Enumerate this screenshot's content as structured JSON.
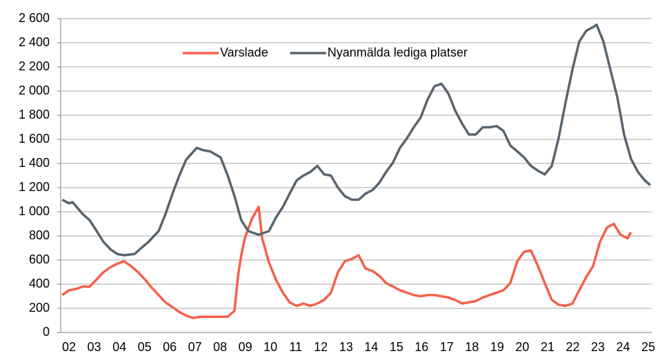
{
  "chart_data": {
    "type": "line",
    "series": [
      {
        "name": "Varslade",
        "color": "#f4604a",
        "x": [
          2001.73,
          2002.0,
          2002.27,
          2002.55,
          2002.82,
          2003.1,
          2003.37,
          2003.64,
          2003.92,
          2004.19,
          2004.46,
          2004.74,
          2005.01,
          2005.29,
          2005.56,
          2005.83,
          2006.11,
          2006.38,
          2006.65,
          2006.93,
          2007.2,
          2007.48,
          2007.75,
          2008.02,
          2008.3,
          2008.57,
          2008.71,
          2008.84,
          2008.98,
          2009.26,
          2009.53,
          2009.67,
          2009.94,
          2010.21,
          2010.49,
          2010.76,
          2011.04,
          2011.31,
          2011.58,
          2011.86,
          2012.13,
          2012.4,
          2012.68,
          2012.95,
          2013.23,
          2013.5,
          2013.77,
          2014.05,
          2014.32,
          2014.59,
          2014.87,
          2015.14,
          2015.42,
          2015.69,
          2015.96,
          2016.24,
          2016.51,
          2016.79,
          2017.06,
          2017.33,
          2017.61,
          2017.88,
          2018.15,
          2018.43,
          2018.7,
          2018.98,
          2019.25,
          2019.52,
          2019.8,
          2020.07,
          2020.34,
          2020.62,
          2020.89,
          2021.17,
          2021.44,
          2021.71,
          2021.99,
          2022.26,
          2022.54,
          2022.81,
          2023.08,
          2023.36,
          2023.63,
          2023.9,
          2024.18,
          2024.31
        ],
        "values": [
          310,
          350,
          360,
          380,
          380,
          440,
          500,
          540,
          570,
          590,
          550,
          500,
          440,
          370,
          310,
          250,
          210,
          170,
          140,
          120,
          130,
          130,
          130,
          130,
          130,
          180,
          470,
          640,
          780,
          940,
          1040,
          780,
          580,
          440,
          330,
          250,
          220,
          240,
          220,
          240,
          270,
          330,
          500,
          590,
          610,
          640,
          530,
          510,
          470,
          410,
          380,
          350,
          330,
          310,
          300,
          310,
          310,
          300,
          290,
          270,
          240,
          250,
          260,
          290,
          310,
          330,
          350,
          410,
          590,
          670,
          680,
          550,
          410,
          270,
          230,
          220,
          240,
          350,
          460,
          550,
          750,
          870,
          900,
          810,
          780,
          830
        ]
      },
      {
        "name": "Nyanmälda lediga platser",
        "color": "#58646e",
        "x": [
          2001.73,
          2002.0,
          2002.14,
          2002.55,
          2002.82,
          2003.1,
          2003.37,
          2003.64,
          2003.92,
          2004.19,
          2004.6,
          2004.87,
          2005.15,
          2005.56,
          2005.83,
          2006.11,
          2006.38,
          2006.65,
          2007.07,
          2007.34,
          2007.61,
          2008.02,
          2008.3,
          2008.57,
          2008.84,
          2009.12,
          2009.53,
          2009.94,
          2010.21,
          2010.49,
          2010.76,
          2011.04,
          2011.31,
          2011.58,
          2011.86,
          2012.13,
          2012.4,
          2012.68,
          2012.95,
          2013.23,
          2013.5,
          2013.77,
          2014.05,
          2014.32,
          2014.59,
          2014.87,
          2015.14,
          2015.42,
          2015.69,
          2015.96,
          2016.24,
          2016.51,
          2016.79,
          2017.06,
          2017.33,
          2017.61,
          2017.88,
          2018.15,
          2018.43,
          2018.7,
          2018.98,
          2019.25,
          2019.52,
          2019.8,
          2020.07,
          2020.34,
          2020.62,
          2020.89,
          2021.17,
          2021.44,
          2021.71,
          2021.99,
          2022.26,
          2022.54,
          2022.81,
          2022.95,
          2023.22,
          2023.49,
          2023.77,
          2024.04,
          2024.31,
          2024.59,
          2024.86,
          2025.08
        ],
        "values": [
          1100,
          1070,
          1080,
          980,
          930,
          840,
          750,
          690,
          650,
          640,
          650,
          700,
          750,
          840,
          980,
          1150,
          1300,
          1430,
          1530,
          1510,
          1500,
          1450,
          1300,
          1130,
          930,
          840,
          810,
          840,
          950,
          1040,
          1150,
          1260,
          1300,
          1330,
          1380,
          1310,
          1300,
          1200,
          1130,
          1100,
          1100,
          1150,
          1180,
          1240,
          1330,
          1410,
          1530,
          1610,
          1700,
          1780,
          1930,
          2040,
          2060,
          1980,
          1840,
          1730,
          1640,
          1640,
          1700,
          1700,
          1710,
          1670,
          1550,
          1500,
          1450,
          1380,
          1340,
          1310,
          1380,
          1610,
          1900,
          2180,
          2410,
          2500,
          2530,
          2550,
          2410,
          2180,
          1950,
          1640,
          1440,
          1330,
          1260,
          1220
        ]
      }
    ],
    "xlim": [
      2001.67,
      2025.14
    ],
    "xticks": [
      {
        "value": 2002,
        "label": "02"
      },
      {
        "value": 2003,
        "label": "03"
      },
      {
        "value": 2004,
        "label": "04"
      },
      {
        "value": 2005,
        "label": "05"
      },
      {
        "value": 2006,
        "label": "06"
      },
      {
        "value": 2007,
        "label": "07"
      },
      {
        "value": 2008,
        "label": "08"
      },
      {
        "value": 2009,
        "label": "09"
      },
      {
        "value": 2010,
        "label": "10"
      },
      {
        "value": 2011,
        "label": "11"
      },
      {
        "value": 2012,
        "label": "12"
      },
      {
        "value": 2013,
        "label": "13"
      },
      {
        "value": 2014,
        "label": "14"
      },
      {
        "value": 2015,
        "label": "15"
      },
      {
        "value": 2016,
        "label": "16"
      },
      {
        "value": 2017,
        "label": "17"
      },
      {
        "value": 2018,
        "label": "18"
      },
      {
        "value": 2019,
        "label": "19"
      },
      {
        "value": 2020,
        "label": "20"
      },
      {
        "value": 2021,
        "label": "21"
      },
      {
        "value": 2022,
        "label": "22"
      },
      {
        "value": 2023,
        "label": "23"
      },
      {
        "value": 2024,
        "label": "24"
      },
      {
        "value": 2025,
        "label": "25"
      }
    ],
    "ylim": [
      0,
      2600
    ],
    "yticks": [
      0,
      200,
      400,
      600,
      800,
      {
        "value": 1000,
        "label": "1 000"
      },
      {
        "value": 1200,
        "label": "1 200"
      },
      {
        "value": 1400,
        "label": "1 400"
      },
      {
        "value": 1600,
        "label": "1 600"
      },
      {
        "value": 1800,
        "label": "1 800"
      },
      {
        "value": 2000,
        "label": "2 000"
      },
      {
        "value": 2200,
        "label": "2 200"
      },
      {
        "value": 2400,
        "label": "2 400"
      },
      {
        "value": 2600,
        "label": "2 600"
      }
    ],
    "grid": true,
    "legend": "top"
  }
}
